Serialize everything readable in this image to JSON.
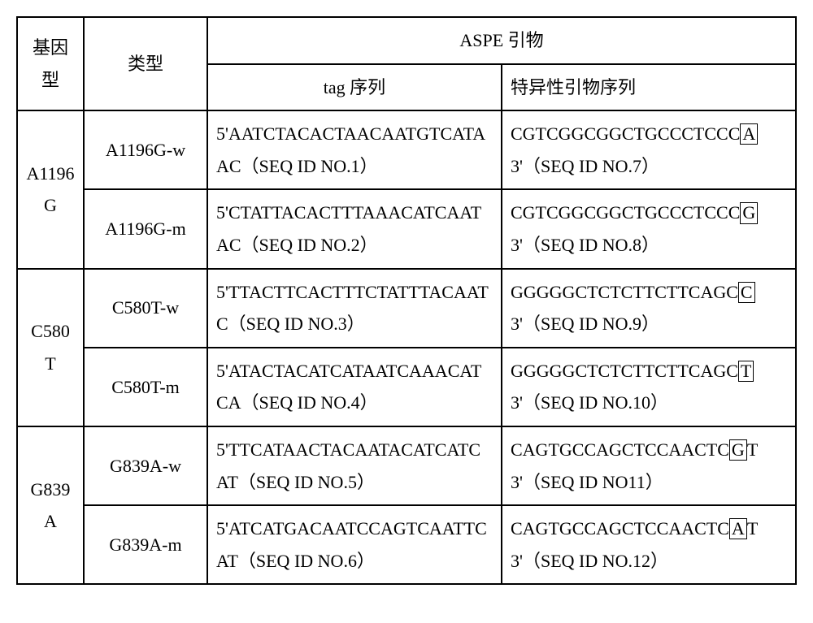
{
  "headers": {
    "genotype": "基因型",
    "type": "类型",
    "aspe": "ASPE 引物",
    "tag": "tag 序列",
    "primer": "特异性引物序列"
  },
  "rows": [
    {
      "genotype": "A1196G",
      "variants": [
        {
          "type": "A1196G-w",
          "tag": "5'AATCTACACTAACAATGTCATAAC（SEQ ID NO.1）",
          "primer_pre": "CGTCGGCGGCTGCCCTCCC",
          "primer_box": "A",
          "primer_post": " 3'（SEQ ID NO.7）"
        },
        {
          "type": "A1196G-m",
          "tag": "5'CTATTACACTTTAAACATCAATAC（SEQ ID NO.2）",
          "primer_pre": "CGTCGGCGGCTGCCCTCCC",
          "primer_box": "G",
          "primer_post": " 3'（SEQ ID NO.8）"
        }
      ]
    },
    {
      "genotype": "C580T",
      "variants": [
        {
          "type": "C580T-w",
          "tag": "5'TTACTTCACTTTCTATTTACAATC（SEQ ID NO.3）",
          "primer_pre": "GGGGGCTCTCTTCTTCAGC",
          "primer_box": "C",
          "primer_post": " 3'（SEQ ID NO.9）"
        },
        {
          "type": "C580T-m",
          "tag": "5'ATACTACATCATAATCAAACATCA（SEQ ID NO.4）",
          "primer_pre": "GGGGGCTCTCTTCTTCAGC",
          "primer_box": "T",
          "primer_post": " 3'（SEQ ID NO.10）"
        }
      ]
    },
    {
      "genotype": "G839A",
      "variants": [
        {
          "type": "G839A-w",
          "tag": "5'TTCATAACTACAATACATCATCAT（SEQ ID NO.5）",
          "primer_pre": "CAGTGCCAGCTCCAACTC",
          "primer_box": "G",
          "primer_post": "T 3'（SEQ ID NO11）"
        },
        {
          "type": "G839A-m",
          "tag": "5'ATCATGACAATCCAGTCAATTCAT（SEQ ID NO.6）",
          "primer_pre": "CAGTGCCAGCTCCAACTC",
          "primer_box": "A",
          "primer_post": "T 3'（SEQ ID NO.12）"
        }
      ]
    }
  ]
}
